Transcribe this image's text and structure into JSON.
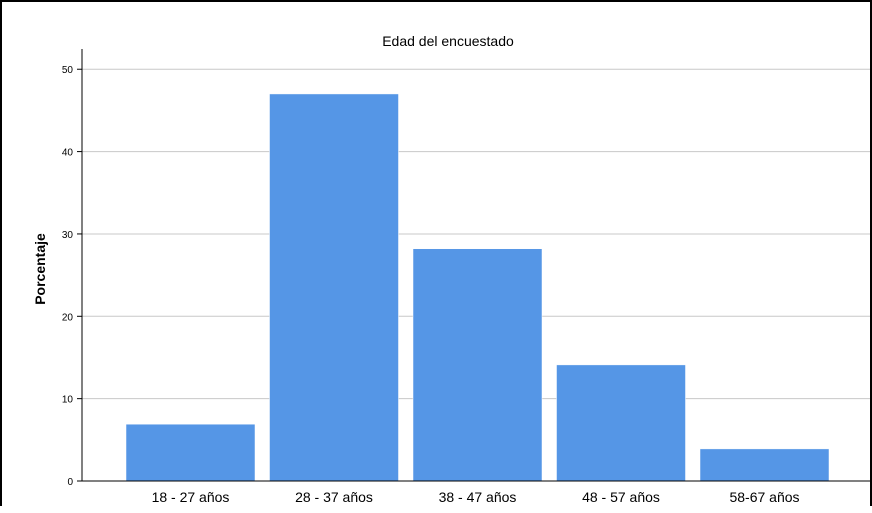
{
  "chart_data": {
    "type": "bar",
    "title": "Edad del encuestado",
    "xlabel": "",
    "ylabel": "Porcentaje",
    "categories": [
      "18 - 27 años",
      "28 - 37 años",
      "38 - 47 años",
      "48 - 57 años",
      "58-67 años"
    ],
    "values": [
      6.9,
      47.0,
      28.2,
      14.1,
      3.9
    ],
    "ylim": [
      0,
      51
    ],
    "yticks": [
      0,
      10,
      20,
      30,
      40,
      50
    ],
    "grid": true,
    "legend": "none",
    "bar_color": "#5596e6",
    "grid_color": "#c8c8c8",
    "axis_color": "#000000"
  }
}
